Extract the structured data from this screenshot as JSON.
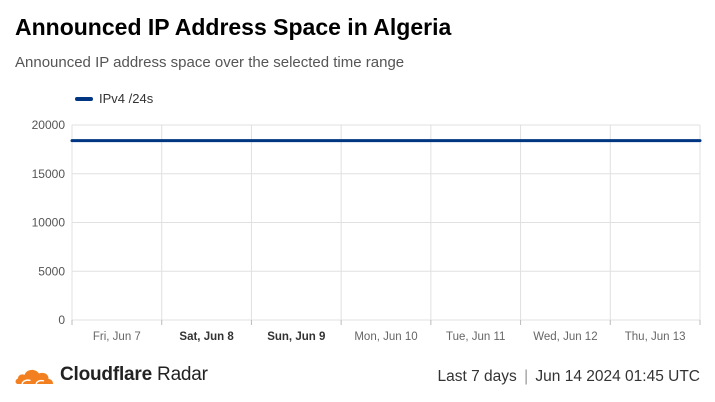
{
  "title": "Announced IP Address Space in Algeria",
  "subtitle": "Announced IP address space over the selected time range",
  "footer": {
    "brand_bold": "Cloudflare",
    "brand_light": "Radar",
    "range": "Last 7 days",
    "separator": "|",
    "timestamp": "Jun 14 2024 01:45 UTC"
  },
  "colors": {
    "series": "#003681",
    "logo": "#f38020",
    "grid": "#e0e0e0"
  },
  "icons": {
    "logo": "cloudflare-cloud-icon"
  },
  "chart_data": {
    "type": "line",
    "title": "Announced IP Address Space in Algeria",
    "xlabel": "",
    "ylabel": "",
    "ylim": [
      0,
      20000
    ],
    "yticks": [
      "0",
      "5000",
      "10000",
      "15000",
      "20000"
    ],
    "categories": [
      "Fri, Jun 7",
      "Sat, Jun 8",
      "Sun, Jun 9",
      "Mon, Jun 10",
      "Tue, Jun 11",
      "Wed, Jun 12",
      "Thu, Jun 13"
    ],
    "bold_categories": [
      "Sat, Jun 8",
      "Sun, Jun 9"
    ],
    "x_start": "2024-06-07T01:45",
    "x_end": "2024-06-14T01:45",
    "legend_position": "top-left",
    "grid": true,
    "series": [
      {
        "name": "IPv4 /24s",
        "x": [
          "2024-06-07T01:45",
          "2024-06-08T01:45",
          "2024-06-09T01:45",
          "2024-06-10T01:45",
          "2024-06-11T01:45",
          "2024-06-12T01:45",
          "2024-06-13T01:45",
          "2024-06-14T01:45"
        ],
        "values": [
          18400,
          18400,
          18400,
          18400,
          18400,
          18400,
          18400,
          18400
        ]
      }
    ]
  }
}
